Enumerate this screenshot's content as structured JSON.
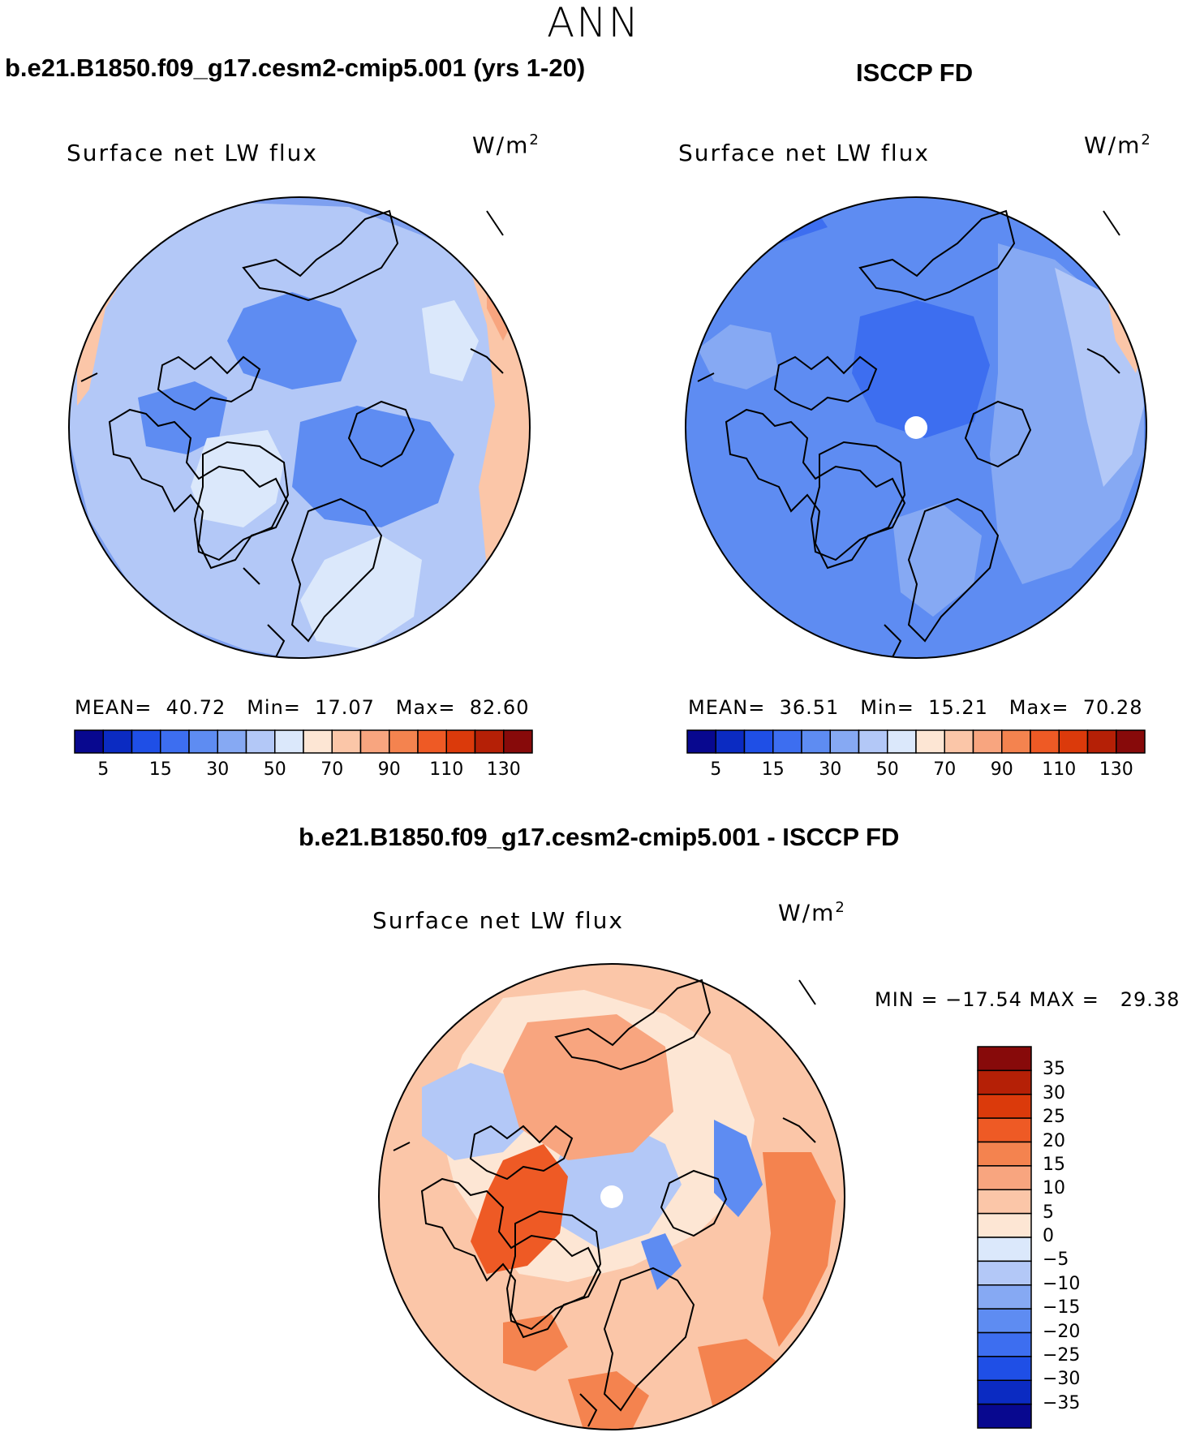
{
  "figure": {
    "season": "ANN"
  },
  "panels": [
    {
      "title": "b.e21.B1850.f09_g17.cesm2-cmip5.001 (yrs 1-20)",
      "variable": "Surface net LW flux",
      "units": "W/m",
      "units_sup": "2",
      "stats": {
        "mean": "MEAN=  40.72",
        "min": "Min=  17.07",
        "max": "Max=  82.60"
      },
      "colorbar": {
        "ticks": [
          "5",
          "15",
          "30",
          "50",
          "70",
          "90",
          "110",
          "130"
        ],
        "colors": [
          "#08088f",
          "#0b2bc2",
          "#1f4fe6",
          "#3d6ef0",
          "#5e8cf2",
          "#86a9f3",
          "#b3c8f7",
          "#dbe8fb",
          "#fde6d4",
          "#fbc6a8",
          "#f8a57f",
          "#f4834f",
          "#ee5a25",
          "#db3a0b",
          "#b52006",
          "#870a0a"
        ]
      }
    },
    {
      "title": "ISCCP FD",
      "variable": "Surface net LW flux",
      "units": "W/m",
      "units_sup": "2",
      "stats": {
        "mean": "MEAN=  36.51",
        "min": "Min=  15.21",
        "max": "Max=  70.28"
      },
      "colorbar": {
        "ticks": [
          "5",
          "15",
          "30",
          "50",
          "70",
          "90",
          "110",
          "130"
        ],
        "colors": [
          "#08088f",
          "#0b2bc2",
          "#1f4fe6",
          "#3d6ef0",
          "#5e8cf2",
          "#86a9f3",
          "#b3c8f7",
          "#dbe8fb",
          "#fde6d4",
          "#fbc6a8",
          "#f8a57f",
          "#f4834f",
          "#ee5a25",
          "#db3a0b",
          "#b52006",
          "#870a0a"
        ]
      }
    },
    {
      "title": "b.e21.B1850.f09_g17.cesm2-cmip5.001 - ISCCP FD",
      "variable": "Surface net LW flux",
      "units": "W/m",
      "units_sup": "2",
      "stats": {
        "minmax": "MIN = −17.54 MAX =   29.38"
      },
      "colorbar": {
        "ticks": [
          "35",
          "30",
          "25",
          "20",
          "15",
          "10",
          "5",
          "0",
          "−5",
          "−10",
          "−15",
          "−20",
          "−25",
          "−30",
          "−35"
        ],
        "colors": [
          "#870a0a",
          "#b52006",
          "#db3a0b",
          "#ee5a25",
          "#f4834f",
          "#f8a57f",
          "#fbc6a8",
          "#fde6d4",
          "#dbe8fb",
          "#b3c8f7",
          "#86a9f3",
          "#5e8cf2",
          "#3d6ef0",
          "#1f4fe6",
          "#0b2bc2",
          "#08088f"
        ]
      }
    }
  ],
  "colors": {
    "base_blue_model": "#7ea0f0",
    "base_blue_obs": "#4f7aeb",
    "base_diff": "#f9c1a2"
  }
}
